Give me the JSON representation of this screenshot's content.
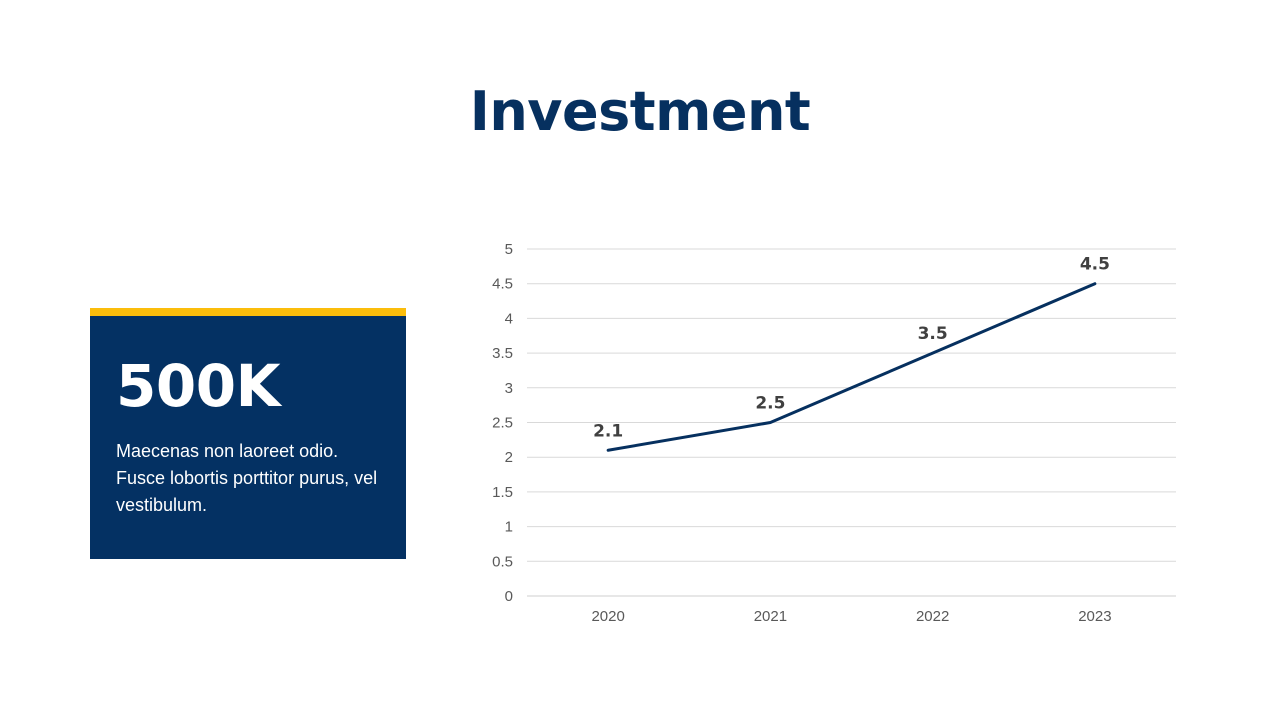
{
  "slide": {
    "title": "Investment"
  },
  "stat_card": {
    "value": "500K",
    "description": "Maecenas non laoreet odio. Fusce lobortis porttitor purus, vel vestibulum.",
    "colors": {
      "background": "#043163",
      "accent": "#fbbd0c"
    }
  },
  "chart_data": {
    "type": "line",
    "title": "",
    "xlabel": "",
    "ylabel": "",
    "categories": [
      "2020",
      "2021",
      "2022",
      "2023"
    ],
    "series": [
      {
        "values": [
          2.1,
          2.5,
          3.5,
          4.5
        ],
        "color": "#06305f"
      }
    ],
    "data_labels": [
      "2.1",
      "2.5",
      "3.5",
      "4.5"
    ],
    "ylim": [
      0,
      5
    ],
    "yticks": [
      0,
      0.5,
      1,
      1.5,
      2,
      2.5,
      3,
      3.5,
      4,
      4.5,
      5
    ],
    "ytick_labels": [
      "0",
      "0.5",
      "1",
      "1.5",
      "2",
      "2.5",
      "3",
      "3.5",
      "4",
      "4.5",
      "5"
    ],
    "grid": true,
    "legend": "none"
  }
}
